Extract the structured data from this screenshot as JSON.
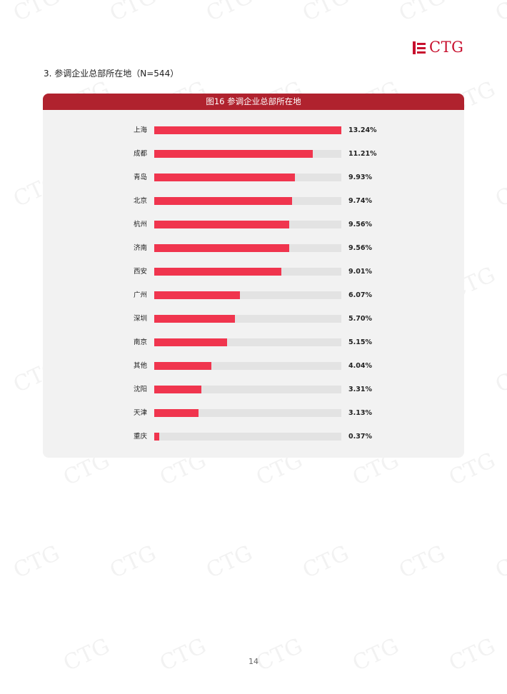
{
  "header": {
    "logo_text": "CTG",
    "logo_color": "#c8102e"
  },
  "section": {
    "title": "3. 参调企业总部所在地（N=544）"
  },
  "chart_data": {
    "type": "bar",
    "orientation": "horizontal",
    "title": "图16 参调企业总部所在地",
    "categories": [
      "上海",
      "成都",
      "青岛",
      "北京",
      "杭州",
      "济南",
      "西安",
      "广州",
      "深圳",
      "南京",
      "其他",
      "沈阳",
      "天津",
      "重庆"
    ],
    "values": [
      13.24,
      11.21,
      9.93,
      9.74,
      9.56,
      9.56,
      9.01,
      6.07,
      5.7,
      5.15,
      4.04,
      3.31,
      3.13,
      0.37
    ],
    "value_labels": [
      "13.24%",
      "11.21%",
      "9.93%",
      "9.74%",
      "9.56%",
      "9.56%",
      "9.01%",
      "6.07%",
      "5.70%",
      "5.15%",
      "4.04%",
      "3.31%",
      "3.13%",
      "0.37%"
    ],
    "xlim": [
      0,
      13.24
    ],
    "bar_color": "#f0354e",
    "track_color": "#e3e3e3",
    "header_color": "#b0222e"
  },
  "watermark": {
    "text": "CTG"
  },
  "footer": {
    "page_number": "14"
  }
}
